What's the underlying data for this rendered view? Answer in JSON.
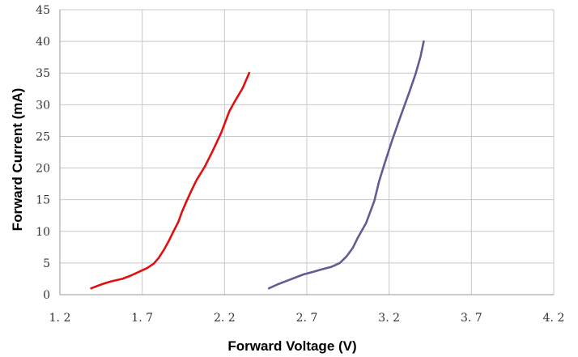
{
  "chart_data": {
    "type": "line",
    "xlabel": "Forward Voltage (V)",
    "ylabel": "Forward Current (mA)",
    "xlim": [
      1.2,
      4.2
    ],
    "ylim": [
      0,
      45
    ],
    "x_ticks": [
      1.2,
      1.7,
      2.2,
      2.7,
      3.2,
      3.7,
      4.2
    ],
    "x_tick_labels": [
      "1. 2",
      "1. 7",
      "2. 2",
      "2. 7",
      "3. 2",
      "3. 7",
      "4. 2"
    ],
    "y_ticks": [
      0,
      5,
      10,
      15,
      20,
      25,
      30,
      35,
      40,
      45
    ],
    "y_tick_labels": [
      "0",
      "5",
      "10",
      "15",
      "20",
      "25",
      "30",
      "35",
      "40",
      "45"
    ],
    "grid": true,
    "series": [
      {
        "color": "#e01010",
        "points": [
          [
            1.39,
            1.0
          ],
          [
            1.45,
            1.6
          ],
          [
            1.51,
            2.1
          ],
          [
            1.58,
            2.5
          ],
          [
            1.63,
            3.0
          ],
          [
            1.68,
            3.6
          ],
          [
            1.73,
            4.2
          ],
          [
            1.77,
            4.9
          ],
          [
            1.8,
            5.8
          ],
          [
            1.83,
            7.0
          ],
          [
            1.86,
            8.4
          ],
          [
            1.89,
            10.0
          ],
          [
            1.92,
            11.5
          ],
          [
            1.94,
            13.0
          ],
          [
            1.97,
            14.8
          ],
          [
            2.0,
            16.5
          ],
          [
            2.03,
            18.1
          ],
          [
            2.08,
            20.2
          ],
          [
            2.13,
            22.8
          ],
          [
            2.18,
            25.6
          ],
          [
            2.23,
            29.0
          ],
          [
            2.26,
            30.4
          ],
          [
            2.31,
            32.6
          ],
          [
            2.35,
            35.0
          ]
        ]
      },
      {
        "color": "#5e5e92",
        "points": [
          [
            2.47,
            1.0
          ],
          [
            2.52,
            1.6
          ],
          [
            2.58,
            2.2
          ],
          [
            2.63,
            2.7
          ],
          [
            2.68,
            3.2
          ],
          [
            2.74,
            3.6
          ],
          [
            2.79,
            4.0
          ],
          [
            2.85,
            4.4
          ],
          [
            2.9,
            5.0
          ],
          [
            2.94,
            6.0
          ],
          [
            2.98,
            7.4
          ],
          [
            3.01,
            9.0
          ],
          [
            3.06,
            11.3
          ],
          [
            3.11,
            14.8
          ],
          [
            3.14,
            18.0
          ],
          [
            3.17,
            20.5
          ],
          [
            3.22,
            24.5
          ],
          [
            3.27,
            28.2
          ],
          [
            3.32,
            31.8
          ],
          [
            3.36,
            34.8
          ],
          [
            3.39,
            37.5
          ],
          [
            3.41,
            40.0
          ]
        ]
      }
    ]
  }
}
